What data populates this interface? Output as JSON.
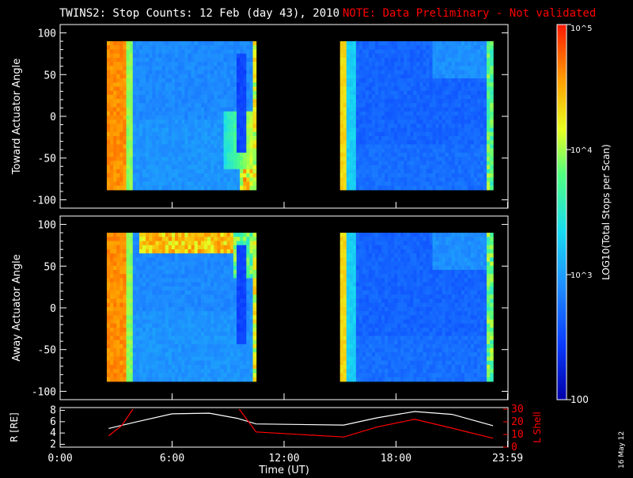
{
  "header": {
    "title": "TWINS2: Stop Counts: 12 Feb (day  43), 2010",
    "note": "NOTE: Data Preliminary - Not validated"
  },
  "footer": {
    "date_stamp": "16 May 12"
  },
  "colors": {
    "note": "#ff0000",
    "l_shell": "#ff0000",
    "r_line": "#ffffff",
    "background": "#000000"
  },
  "chart_data": [
    {
      "type": "heatmap",
      "name": "toward",
      "ylabel": "Toward Actuator Angle",
      "yticks": [
        100,
        50,
        0,
        -50,
        -100
      ],
      "ylim": [
        -110,
        110
      ],
      "xlim_hours": [
        0,
        24
      ],
      "angle_range": [
        -88,
        90
      ],
      "segments_hours": [
        [
          2.5,
          10.5
        ],
        [
          15.0,
          23.2
        ]
      ]
    },
    {
      "type": "heatmap",
      "name": "away",
      "ylabel": "Away Actuator Angle",
      "yticks": [
        100,
        50,
        0,
        -50,
        -100
      ],
      "ylim": [
        -110,
        110
      ],
      "xlim_hours": [
        0,
        24
      ],
      "angle_range": [
        -88,
        90
      ],
      "segments_hours": [
        [
          2.5,
          10.5
        ],
        [
          15.0,
          23.2
        ]
      ]
    },
    {
      "type": "line",
      "name": "orbit",
      "xlabel": "Time (UT)",
      "xtick_labels": [
        "0:00",
        "6:00",
        "12:00",
        "18:00",
        "23:59"
      ],
      "xtick_hours": [
        0,
        6,
        12,
        18,
        23.98
      ],
      "left_axis": {
        "label": "R [RE]",
        "ticks": [
          "2",
          "4",
          "6",
          "8"
        ],
        "ylim": [
          1.5,
          8.5
        ]
      },
      "right_axis": {
        "label": "L Shell",
        "ticks": [
          "0",
          "10",
          "20",
          "30"
        ],
        "ylim": [
          0,
          30
        ]
      },
      "series": [
        {
          "name": "R",
          "axis": "left",
          "x": [
            2.6,
            4,
            6,
            8,
            9.5,
            10.5,
            15.2,
            17,
            19,
            21,
            23.2
          ],
          "y": [
            4.8,
            5.9,
            7.4,
            7.5,
            6.6,
            5.6,
            5.4,
            6.7,
            7.8,
            7.3,
            5.3
          ]
        },
        {
          "name": "L Shell",
          "axis": "right",
          "x": [
            2.6,
            3.3,
            3.9
          ],
          "y": [
            9,
            17,
            30
          ]
        },
        {
          "name": "L Shell",
          "axis": "right",
          "x": [
            9.6,
            10.5,
            15.2,
            17,
            19,
            21,
            23.2
          ],
          "y": [
            30,
            12,
            8,
            16,
            22,
            15,
            7
          ]
        }
      ]
    },
    {
      "type": "colorbar",
      "name": "colorbar",
      "label": "LOG10(Total Stops per Scan)",
      "range": [
        100,
        100000
      ],
      "tick_labels": [
        "100",
        "10^3",
        "10^4",
        "10^5"
      ],
      "tick_values": [
        100,
        1000,
        10000,
        100000
      ]
    }
  ]
}
